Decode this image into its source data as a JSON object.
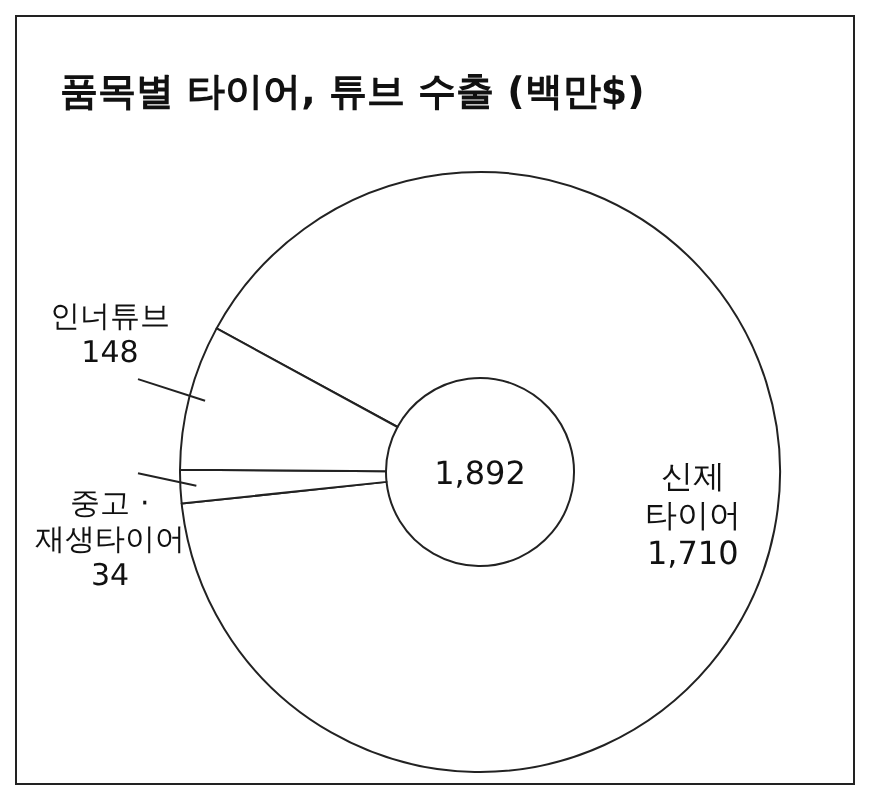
{
  "chart_data": {
    "type": "donut",
    "title": "품목별 타이어, 튜브 수출 (백만$)",
    "categories": [
      "신제 타이어",
      "중고 · 재생타이어",
      "인너튜브"
    ],
    "values": [
      1710,
      34,
      148
    ],
    "colors": [
      "#ffffff",
      "#ffffff",
      "#ffffff"
    ],
    "value_labels": [
      "1,710",
      "34",
      "148"
    ],
    "annotations": [
      "1,892"
    ]
  }
}
